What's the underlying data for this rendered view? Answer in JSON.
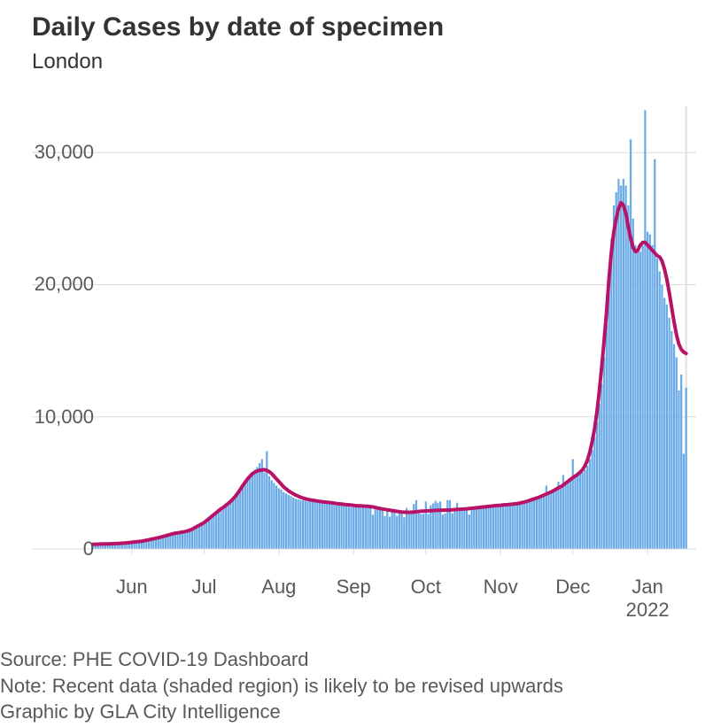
{
  "title": "Daily Cases by date of specimen",
  "subtitle": "London",
  "footnote_source": "Source: PHE COVID-19 Dashboard",
  "footnote_note": "Note: Recent data (shaded region) is likely to be revised upwards",
  "footnote_graphic": "Graphic by GLA City Intelligence",
  "chart": {
    "type": "bar+line",
    "background_color": "#ffffff",
    "bar_color": "#6aabe7",
    "line_color": "#b81267",
    "line_width": 4,
    "grid_color": "#dcdcdc",
    "axis_color": "#dcdcdc",
    "tick_label_color": "#595959",
    "title_fontsize": 30,
    "subtitle_fontsize": 24,
    "tick_fontsize": 22,
    "footnote_fontsize": 22,
    "shaded_region_color": "#e6e6e6",
    "shaded_region_start_index": 246,
    "ylim": [
      0,
      33500
    ],
    "yticks": [
      0,
      10000,
      20000,
      30000
    ],
    "ytick_labels": [
      "0",
      "10,000",
      "20,000",
      "30,000"
    ],
    "x_tick_indices": [
      16,
      46,
      77,
      108,
      138,
      169,
      199,
      230
    ],
    "x_tick_labels": [
      "Jun",
      "Jul",
      "Aug",
      "Sep",
      "Oct",
      "Nov",
      "Dec",
      "Jan"
    ],
    "x_year_index": 230,
    "x_year_label": "2022",
    "bar_values": [
      350,
      350,
      360,
      360,
      370,
      370,
      370,
      400,
      400,
      420,
      430,
      440,
      450,
      450,
      500,
      500,
      560,
      580,
      580,
      580,
      590,
      600,
      700,
      750,
      800,
      820,
      850,
      860,
      900,
      950,
      1000,
      1050,
      1100,
      1100,
      1150,
      1200,
      1200,
      1250,
      1300,
      1300,
      1400,
      1500,
      1600,
      1700,
      1800,
      1800,
      1900,
      2000,
      2200,
      2400,
      2500,
      2700,
      2900,
      2900,
      3000,
      3200,
      3400,
      3500,
      3800,
      4000,
      4200,
      4500,
      4800,
      5000,
      5200,
      5500,
      5800,
      6000,
      6200,
      6500,
      6800,
      5800,
      7400,
      5500,
      5200,
      5000,
      4800,
      4600,
      4500,
      4300,
      4200,
      4100,
      4000,
      3900,
      3800,
      3750,
      3700,
      3700,
      3650,
      3600,
      3600,
      3550,
      3550,
      3500,
      3500,
      3500,
      3450,
      3450,
      3400,
      3400,
      3400,
      3300,
      3300,
      3300,
      3300,
      3250,
      3250,
      3150,
      3200,
      3200,
      3200,
      3200,
      3200,
      3100,
      3200,
      3100,
      2600,
      3000,
      3000,
      3200,
      2900,
      2500,
      2850,
      2450,
      2800,
      2800,
      2500,
      2800,
      2750,
      2400,
      3100,
      2700,
      2700,
      3400,
      3700,
      2700,
      2650,
      2650,
      3600,
      2650,
      3300,
      3450,
      3650,
      3500,
      3600,
      2600,
      2700,
      3700,
      3700,
      2700,
      3100,
      3500,
      2900,
      3000,
      3000,
      3000,
      2600,
      3100,
      3200,
      3100,
      3200,
      3200,
      3200,
      3200,
      3250,
      3250,
      3250,
      3300,
      3300,
      3300,
      3350,
      3350,
      3350,
      3400,
      3400,
      3400,
      3400,
      3450,
      3500,
      3550,
      3600,
      3700,
      3700,
      3800,
      3800,
      3900,
      4000,
      4100,
      4800,
      4200,
      4300,
      4400,
      4500,
      5100,
      4700,
      5600,
      5100,
      5100,
      5200,
      6800,
      5400,
      5800,
      5700,
      5800,
      6000,
      6300,
      6800,
      7500,
      8500,
      9600,
      11000,
      12500,
      14500,
      17000,
      20500,
      23500,
      26000,
      27000,
      28000,
      27500,
      28000,
      27500,
      26000,
      31000,
      25000,
      23000,
      22500,
      22500,
      23000,
      33200,
      24000,
      23800,
      23000,
      29500,
      22000,
      21000,
      20000,
      19000,
      18500,
      17500,
      16500,
      15500,
      14500,
      12000,
      13200,
      7200,
      12200
    ],
    "moving_avg": [
      360,
      365,
      370,
      375,
      380,
      385,
      390,
      395,
      400,
      410,
      420,
      430,
      440,
      450,
      470,
      490,
      510,
      530,
      550,
      570,
      590,
      620,
      660,
      700,
      740,
      780,
      820,
      860,
      900,
      950,
      1000,
      1050,
      1100,
      1150,
      1200,
      1220,
      1250,
      1280,
      1320,
      1360,
      1420,
      1500,
      1600,
      1700,
      1800,
      1900,
      2000,
      2150,
      2300,
      2450,
      2600,
      2750,
      2900,
      3050,
      3150,
      3300,
      3450,
      3600,
      3800,
      4000,
      4250,
      4500,
      4800,
      5050,
      5300,
      5500,
      5700,
      5800,
      5900,
      5950,
      5980,
      6000,
      5950,
      5850,
      5700,
      5500,
      5300,
      5100,
      4900,
      4700,
      4550,
      4400,
      4280,
      4180,
      4080,
      4000,
      3920,
      3860,
      3800,
      3760,
      3720,
      3690,
      3660,
      3630,
      3600,
      3580,
      3560,
      3540,
      3520,
      3500,
      3470,
      3440,
      3420,
      3400,
      3380,
      3360,
      3340,
      3320,
      3300,
      3280,
      3270,
      3260,
      3250,
      3240,
      3230,
      3210,
      3180,
      3140,
      3100,
      3060,
      3030,
      3000,
      2970,
      2940,
      2910,
      2880,
      2850,
      2820,
      2800,
      2790,
      2780,
      2780,
      2790,
      2800,
      2820,
      2840,
      2860,
      2870,
      2880,
      2890,
      2900,
      2910,
      2920,
      2930,
      2935,
      2940,
      2940,
      2945,
      2950,
      2960,
      2980,
      3000,
      3010,
      3020,
      3030,
      3040,
      3060,
      3080,
      3100,
      3120,
      3140,
      3160,
      3180,
      3200,
      3220,
      3240,
      3260,
      3280,
      3300,
      3310,
      3330,
      3350,
      3360,
      3380,
      3400,
      3420,
      3440,
      3480,
      3520,
      3560,
      3620,
      3680,
      3740,
      3800,
      3860,
      3920,
      4000,
      4080,
      4160,
      4240,
      4320,
      4420,
      4520,
      4620,
      4720,
      4840,
      4980,
      5120,
      5260,
      5400,
      5520,
      5650,
      5800,
      6000,
      6300,
      6700,
      7300,
      8100,
      9100,
      10400,
      12000,
      13800,
      15800,
      18000,
      20500,
      22500,
      24000,
      25000,
      25800,
      26200,
      26000,
      25400,
      24400,
      23500,
      22800,
      22500,
      22600,
      23000,
      23200,
      23200,
      23000,
      22800,
      22600,
      22400,
      22200,
      22100,
      21800,
      21200,
      20400,
      19400,
      18300,
      17200,
      16200,
      15500,
      15100,
      14900,
      14800
    ]
  }
}
